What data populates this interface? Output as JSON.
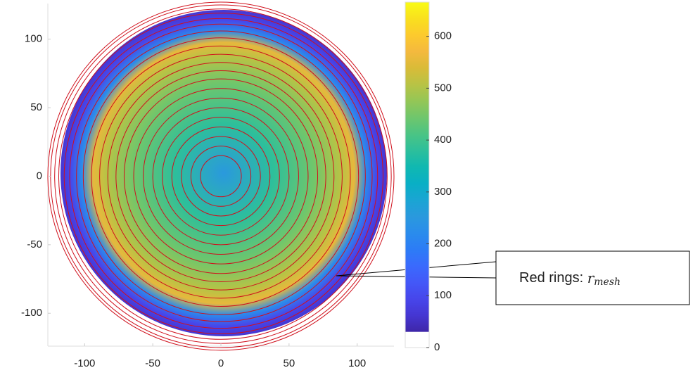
{
  "chart_data": {
    "type": "heatmap-rings",
    "ring_radii": [
      15,
      22,
      29,
      36,
      43,
      50,
      57,
      64,
      71,
      77,
      83,
      89,
      95,
      101,
      106,
      111,
      115,
      119,
      122,
      125,
      127
    ],
    "ring_color": "#d0101c",
    "xlim": [
      -127,
      127
    ],
    "xticks": [
      -100,
      -50,
      0,
      50,
      100
    ],
    "ylim": [
      -124,
      126
    ],
    "yticks": [
      -100,
      -50,
      0,
      50,
      100
    ],
    "clim": [
      0,
      666
    ],
    "cticks": [
      0,
      100,
      200,
      300,
      400,
      500,
      600
    ],
    "colormap": [
      "#ffffff",
      "#3e26a8",
      "#4536d2",
      "#4746eb",
      "#4358f8",
      "#3a6afd",
      "#2c7cf6",
      "#2a8cec",
      "#2a99dd",
      "#1aa5d3",
      "#09afc5",
      "#10b8b1",
      "#2dbf9b",
      "#4bc484",
      "#6fc66c",
      "#94c656",
      "#b8c345",
      "#d9bb38",
      "#f4b93e",
      "#fcca2d",
      "#f9e01e",
      "#f9fb15"
    ],
    "annotation": {
      "text": "Red rings:",
      "symbol": "r",
      "subscript": "mesh"
    }
  }
}
